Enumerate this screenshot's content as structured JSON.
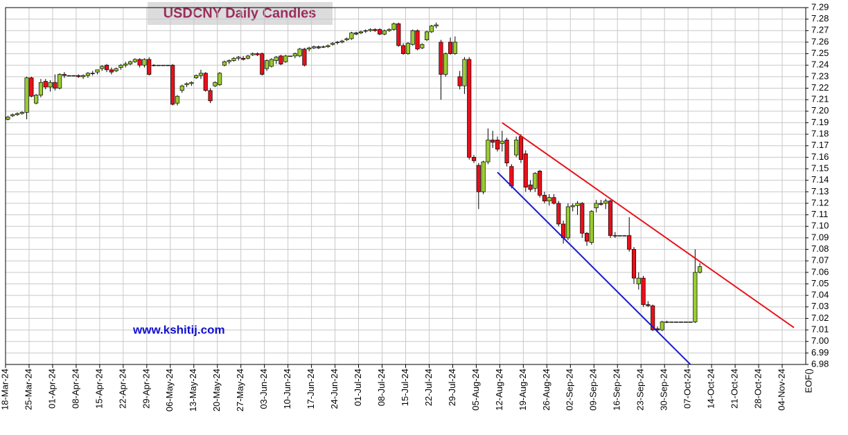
{
  "chart_data": {
    "type": "candlestick",
    "title": "USDCNY Daily Candles",
    "watermark": "www.kshitij.com",
    "up_color": "#99cc33",
    "down_color": "#e8101a",
    "grid": true,
    "xlim": [
      "2024-03-18",
      "2024-11-11"
    ],
    "x_end_label": "EOF()",
    "xticks": [
      {
        "value": "2024-03-18",
        "label": "18-Mar-24"
      },
      {
        "value": "2024-03-25",
        "label": "25-Mar-24"
      },
      {
        "value": "2024-04-01",
        "label": "01-Apr-24"
      },
      {
        "value": "2024-04-08",
        "label": "08-Apr-24"
      },
      {
        "value": "2024-04-15",
        "label": "15-Apr-24"
      },
      {
        "value": "2024-04-22",
        "label": "22-Apr-24"
      },
      {
        "value": "2024-04-29",
        "label": "29-Apr-24"
      },
      {
        "value": "2024-05-06",
        "label": "06-May-24"
      },
      {
        "value": "2024-05-13",
        "label": "13-May-24"
      },
      {
        "value": "2024-05-20",
        "label": "20-May-24"
      },
      {
        "value": "2024-05-27",
        "label": "27-May-24"
      },
      {
        "value": "2024-06-03",
        "label": "03-Jun-24"
      },
      {
        "value": "2024-06-10",
        "label": "10-Jun-24"
      },
      {
        "value": "2024-06-17",
        "label": "17-Jun-24"
      },
      {
        "value": "2024-06-24",
        "label": "24-Jun-24"
      },
      {
        "value": "2024-07-01",
        "label": "01-Jul-24"
      },
      {
        "value": "2024-07-08",
        "label": "08-Jul-24"
      },
      {
        "value": "2024-07-15",
        "label": "15-Jul-24"
      },
      {
        "value": "2024-07-22",
        "label": "22-Jul-24"
      },
      {
        "value": "2024-07-29",
        "label": "29-Jul-24"
      },
      {
        "value": "2024-08-05",
        "label": "05-Aug-24"
      },
      {
        "value": "2024-08-12",
        "label": "12-Aug-24"
      },
      {
        "value": "2024-08-19",
        "label": "19-Aug-24"
      },
      {
        "value": "2024-08-26",
        "label": "26-Aug-24"
      },
      {
        "value": "2024-09-02",
        "label": "02-Sep-24"
      },
      {
        "value": "2024-09-09",
        "label": "09-Sep-24"
      },
      {
        "value": "2024-09-16",
        "label": "16-Sep-24"
      },
      {
        "value": "2024-09-23",
        "label": "23-Sep-24"
      },
      {
        "value": "2024-09-30",
        "label": "30-Sep-24"
      },
      {
        "value": "2024-10-07",
        "label": "07-Oct-24"
      },
      {
        "value": "2024-10-14",
        "label": "14-Oct-24"
      },
      {
        "value": "2024-10-21",
        "label": "21-Oct-24"
      },
      {
        "value": "2024-10-28",
        "label": "28-Oct-24"
      },
      {
        "value": "2024-11-04",
        "label": "04-Nov-24"
      }
    ],
    "ylim": [
      6.98,
      7.29
    ],
    "yticks": [
      6.98,
      6.99,
      {
        "value": 7,
        "label": "7.00"
      },
      7.01,
      7.02,
      7.03,
      7.04,
      7.05,
      7.06,
      7.07,
      7.08,
      7.09,
      {
        "value": 7.1,
        "label": "7.10"
      },
      7.11,
      7.12,
      7.13,
      7.14,
      7.15,
      7.16,
      7.17,
      7.18,
      7.19,
      {
        "value": 7.2,
        "label": "7.20"
      },
      7.21,
      7.22,
      7.23,
      7.24,
      7.25,
      7.26,
      7.27,
      7.28,
      7.29
    ],
    "x": [
      "2024-03-18",
      "2024-03-19",
      "2024-03-20",
      "2024-03-21",
      "2024-03-22",
      "2024-03-25",
      "2024-03-26",
      "2024-03-27",
      "2024-03-28",
      "2024-03-29",
      "2024-04-01",
      "2024-04-02",
      "2024-04-03",
      "2024-04-04",
      "2024-04-05",
      "2024-04-08",
      "2024-04-09",
      "2024-04-10",
      "2024-04-11",
      "2024-04-12",
      "2024-04-15",
      "2024-04-16",
      "2024-04-17",
      "2024-04-18",
      "2024-04-19",
      "2024-04-22",
      "2024-04-23",
      "2024-04-24",
      "2024-04-25",
      "2024-04-26",
      "2024-04-29",
      "2024-04-30",
      "2024-05-01",
      "2024-05-02",
      "2024-05-03",
      "2024-05-06",
      "2024-05-07",
      "2024-05-08",
      "2024-05-09",
      "2024-05-10",
      "2024-05-13",
      "2024-05-14",
      "2024-05-15",
      "2024-05-16",
      "2024-05-17",
      "2024-05-20",
      "2024-05-21",
      "2024-05-22",
      "2024-05-23",
      "2024-05-24",
      "2024-05-27",
      "2024-05-28",
      "2024-05-29",
      "2024-05-30",
      "2024-05-31",
      "2024-06-03",
      "2024-06-04",
      "2024-06-05",
      "2024-06-06",
      "2024-06-07",
      "2024-06-10",
      "2024-06-11",
      "2024-06-12",
      "2024-06-13",
      "2024-06-14",
      "2024-06-17",
      "2024-06-18",
      "2024-06-19",
      "2024-06-20",
      "2024-06-21",
      "2024-06-24",
      "2024-06-25",
      "2024-06-26",
      "2024-06-27",
      "2024-06-28",
      "2024-07-01",
      "2024-07-02",
      "2024-07-03",
      "2024-07-04",
      "2024-07-05",
      "2024-07-08",
      "2024-07-09",
      "2024-07-10",
      "2024-07-11",
      "2024-07-12",
      "2024-07-15",
      "2024-07-16",
      "2024-07-17",
      "2024-07-18",
      "2024-07-19",
      "2024-07-22",
      "2024-07-23",
      "2024-07-24",
      "2024-07-25",
      "2024-07-26",
      "2024-07-29",
      "2024-07-30",
      "2024-07-31",
      "2024-08-01",
      "2024-08-02",
      "2024-08-05",
      "2024-08-06",
      "2024-08-07",
      "2024-08-08",
      "2024-08-09",
      "2024-08-12",
      "2024-08-13",
      "2024-08-14",
      "2024-08-15",
      "2024-08-16",
      "2024-08-19",
      "2024-08-20",
      "2024-08-21",
      "2024-08-22",
      "2024-08-23",
      "2024-08-26",
      "2024-08-27",
      "2024-08-28",
      "2024-08-29",
      "2024-08-30",
      "2024-09-02",
      "2024-09-03",
      "2024-09-04",
      "2024-09-05",
      "2024-09-06",
      "2024-09-09",
      "2024-09-10",
      "2024-09-11",
      "2024-09-12",
      "2024-09-13",
      "2024-09-16",
      "2024-09-17",
      "2024-09-18",
      "2024-09-19",
      "2024-09-20",
      "2024-09-23",
      "2024-09-24",
      "2024-09-25",
      "2024-09-26",
      "2024-09-27",
      "2024-09-30",
      "2024-10-01",
      "2024-10-02",
      "2024-10-03",
      "2024-10-04",
      "2024-10-07",
      "2024-10-08",
      "2024-10-09"
    ],
    "ohlc": [
      [
        7.193,
        7.196,
        7.192,
        7.195
      ],
      [
        7.196,
        7.198,
        7.195,
        7.197
      ],
      [
        7.197,
        7.199,
        7.196,
        7.198
      ],
      [
        7.198,
        7.2,
        7.197,
        7.199
      ],
      [
        7.199,
        7.23,
        7.193,
        7.229
      ],
      [
        7.229,
        7.23,
        7.212,
        7.213
      ],
      [
        7.207,
        7.215,
        7.206,
        7.214
      ],
      [
        7.214,
        7.228,
        7.212,
        7.225
      ],
      [
        7.226,
        7.228,
        7.219,
        7.221
      ],
      [
        7.221,
        7.227,
        7.217,
        7.225
      ],
      [
        7.225,
        7.232,
        7.218,
        7.22
      ],
      [
        7.22,
        7.233,
        7.219,
        7.232
      ],
      [
        7.232,
        7.234,
        7.229,
        7.231
      ],
      [
        7.231,
        7.231,
        7.231,
        7.231
      ],
      [
        7.231,
        7.231,
        7.231,
        7.231
      ],
      [
        7.231,
        7.232,
        7.229,
        7.23
      ],
      [
        7.23,
        7.232,
        7.228,
        7.231
      ],
      [
        7.231,
        7.234,
        7.229,
        7.233
      ],
      [
        7.233,
        7.235,
        7.231,
        7.233
      ],
      [
        7.234,
        7.236,
        7.232,
        7.236
      ],
      [
        7.237,
        7.24,
        7.235,
        7.239
      ],
      [
        7.24,
        7.241,
        7.234,
        7.236
      ],
      [
        7.236,
        7.238,
        7.232,
        7.234
      ],
      [
        7.235,
        7.238,
        7.234,
        7.237
      ],
      [
        7.238,
        7.241,
        7.236,
        7.24
      ],
      [
        7.24,
        7.243,
        7.238,
        7.241
      ],
      [
        7.241,
        7.244,
        7.24,
        7.243
      ],
      [
        7.243,
        7.246,
        7.242,
        7.245
      ],
      [
        7.245,
        7.246,
        7.238,
        7.24
      ],
      [
        7.24,
        7.246,
        7.238,
        7.245
      ],
      [
        7.245,
        7.247,
        7.231,
        7.232
      ],
      [
        7.24,
        7.241,
        7.239,
        7.24
      ],
      [
        7.24,
        7.24,
        7.24,
        7.24
      ],
      [
        7.24,
        7.24,
        7.24,
        7.24
      ],
      [
        7.24,
        7.24,
        7.24,
        7.24
      ],
      [
        7.24,
        7.241,
        7.205,
        7.206
      ],
      [
        7.207,
        7.214,
        7.205,
        7.213
      ],
      [
        7.218,
        7.223,
        7.216,
        7.222
      ],
      [
        7.223,
        7.225,
        7.221,
        7.224
      ],
      [
        7.224,
        7.226,
        7.222,
        7.225
      ],
      [
        7.229,
        7.232,
        7.228,
        7.231
      ],
      [
        7.231,
        7.236,
        7.228,
        7.233
      ],
      [
        7.233,
        7.234,
        7.217,
        7.218
      ],
      [
        7.218,
        7.22,
        7.207,
        7.209
      ],
      [
        7.222,
        7.226,
        7.221,
        7.225
      ],
      [
        7.223,
        7.234,
        7.222,
        7.233
      ],
      [
        7.24,
        7.244,
        7.239,
        7.243
      ],
      [
        7.243,
        7.245,
        7.241,
        7.244
      ],
      [
        7.244,
        7.247,
        7.243,
        7.246
      ],
      [
        7.246,
        7.248,
        7.244,
        7.247
      ],
      [
        7.246,
        7.248,
        7.244,
        7.245
      ],
      [
        7.246,
        7.249,
        7.245,
        7.248
      ],
      [
        7.249,
        7.251,
        7.248,
        7.25
      ],
      [
        7.25,
        7.251,
        7.248,
        7.249
      ],
      [
        7.25,
        7.251,
        7.231,
        7.232
      ],
      [
        7.237,
        7.245,
        7.235,
        7.244
      ],
      [
        7.239,
        7.246,
        7.238,
        7.245
      ],
      [
        7.244,
        7.248,
        7.241,
        7.247
      ],
      [
        7.248,
        7.249,
        7.24,
        7.241
      ],
      [
        7.243,
        7.249,
        7.242,
        7.248
      ],
      [
        7.248,
        7.248,
        7.248,
        7.248
      ],
      [
        7.248,
        7.251,
        7.246,
        7.25
      ],
      [
        7.248,
        7.255,
        7.247,
        7.254
      ],
      [
        7.254,
        7.255,
        7.239,
        7.24
      ],
      [
        7.254,
        7.256,
        7.252,
        7.255
      ],
      [
        7.255,
        7.257,
        7.254,
        7.256
      ],
      [
        7.256,
        7.257,
        7.254,
        7.255
      ],
      [
        7.256,
        7.257,
        7.255,
        7.256
      ],
      [
        7.256,
        7.258,
        7.255,
        7.257
      ],
      [
        7.258,
        7.26,
        7.257,
        7.259
      ],
      [
        7.26,
        7.261,
        7.258,
        7.26
      ],
      [
        7.26,
        7.262,
        7.259,
        7.261
      ],
      [
        7.262,
        7.264,
        7.261,
        7.263
      ],
      [
        7.263,
        7.269,
        7.262,
        7.268
      ],
      [
        7.268,
        7.269,
        7.266,
        7.267
      ],
      [
        7.268,
        7.27,
        7.267,
        7.269
      ],
      [
        7.27,
        7.271,
        7.268,
        7.27
      ],
      [
        7.27,
        7.272,
        7.269,
        7.271
      ],
      [
        7.271,
        7.272,
        7.269,
        7.27
      ],
      [
        7.271,
        7.272,
        7.266,
        7.267
      ],
      [
        7.267,
        7.271,
        7.266,
        7.27
      ],
      [
        7.27,
        7.272,
        7.269,
        7.271
      ],
      [
        7.271,
        7.277,
        7.27,
        7.276
      ],
      [
        7.276,
        7.277,
        7.256,
        7.257
      ],
      [
        7.257,
        7.259,
        7.249,
        7.25
      ],
      [
        7.25,
        7.26,
        7.249,
        7.259
      ],
      [
        7.258,
        7.271,
        7.257,
        7.27
      ],
      [
        7.27,
        7.271,
        7.253,
        7.254
      ],
      [
        7.255,
        7.259,
        7.254,
        7.258
      ],
      [
        7.262,
        7.27,
        7.261,
        7.269
      ],
      [
        7.269,
        7.275,
        7.268,
        7.274
      ],
      [
        7.274,
        7.277,
        7.272,
        7.275
      ],
      [
        7.26,
        7.262,
        7.21,
        7.232
      ],
      [
        7.232,
        7.251,
        7.23,
        7.25
      ],
      [
        7.26,
        7.264,
        7.249,
        7.25
      ],
      [
        7.25,
        7.265,
        7.249,
        7.26
      ],
      [
        7.23,
        7.235,
        7.219,
        7.222
      ],
      [
        7.222,
        7.247,
        7.215,
        7.245
      ],
      [
        7.245,
        7.247,
        7.158,
        7.16
      ],
      [
        7.16,
        7.162,
        7.155,
        7.157
      ],
      [
        7.153,
        7.155,
        7.115,
        7.13
      ],
      [
        7.13,
        7.157,
        7.128,
        7.156
      ],
      [
        7.156,
        7.185,
        7.154,
        7.175
      ],
      [
        7.175,
        7.183,
        7.168,
        7.173
      ],
      [
        7.175,
        7.178,
        7.165,
        7.167
      ],
      [
        7.172,
        7.183,
        7.165,
        7.174
      ],
      [
        7.175,
        7.177,
        7.152,
        7.155
      ],
      [
        7.152,
        7.154,
        7.133,
        7.135
      ],
      [
        7.162,
        7.178,
        7.16,
        7.175
      ],
      [
        7.178,
        7.18,
        7.155,
        7.158
      ],
      [
        7.163,
        7.166,
        7.13,
        7.134
      ],
      [
        7.136,
        7.14,
        7.13,
        7.132
      ],
      [
        7.133,
        7.147,
        7.13,
        7.146
      ],
      [
        7.148,
        7.149,
        7.125,
        7.127
      ],
      [
        7.127,
        7.13,
        7.12,
        7.122
      ],
      [
        7.122,
        7.128,
        7.118,
        7.125
      ],
      [
        7.125,
        7.128,
        7.119,
        7.12
      ],
      [
        7.12,
        7.122,
        7.1,
        7.102
      ],
      [
        7.102,
        7.105,
        7.085,
        7.09
      ],
      [
        7.09,
        7.12,
        7.088,
        7.117
      ],
      [
        7.117,
        7.12,
        7.113,
        7.118
      ],
      [
        7.118,
        7.122,
        7.11,
        7.12
      ],
      [
        7.12,
        7.121,
        7.09,
        7.094
      ],
      [
        7.094,
        7.095,
        7.083,
        7.087
      ],
      [
        7.086,
        7.114,
        7.084,
        7.113
      ],
      [
        7.116,
        7.123,
        7.112,
        7.12
      ],
      [
        7.12,
        7.123,
        7.118,
        7.119
      ],
      [
        7.12,
        7.124,
        7.115,
        7.122
      ],
      [
        7.122,
        7.123,
        7.09,
        7.092
      ],
      [
        7.092,
        7.095,
        7.09,
        7.092
      ],
      [
        7.092,
        7.092,
        7.092,
        7.092
      ],
      [
        7.092,
        7.092,
        7.092,
        7.092
      ],
      [
        7.092,
        7.108,
        7.078,
        7.08
      ],
      [
        7.08,
        7.082,
        7.05,
        7.055
      ],
      [
        7.05,
        7.06,
        7.045,
        7.055
      ],
      [
        7.055,
        7.057,
        7.03,
        7.032
      ],
      [
        7.032,
        7.035,
        7.03,
        7.031
      ],
      [
        7.031,
        7.032,
        7.009,
        7.01
      ],
      [
        7.011,
        7.013,
        7.009,
        7.01
      ],
      [
        7.01,
        7.018,
        7.009,
        7.017
      ],
      [
        7.017,
        7.018,
        7.016,
        7.017
      ],
      [
        7.017,
        7.017,
        7.017,
        7.017
      ],
      [
        7.017,
        7.017,
        7.017,
        7.017
      ],
      [
        7.017,
        7.017,
        7.017,
        7.017
      ],
      [
        7.017,
        7.017,
        7.017,
        7.017
      ],
      [
        7.017,
        7.017,
        7.017,
        7.017
      ],
      [
        7.017,
        7.08,
        7.016,
        7.06
      ],
      [
        7.06,
        7.068,
        7.059,
        7.065
      ]
    ],
    "trendlines": [
      {
        "color": "#e8101a",
        "x": [
          "2024-08-12",
          "2024-11-06"
        ],
        "y": [
          7.19,
          7.012
        ]
      },
      {
        "color": "#1a1ac8",
        "x": [
          "2024-08-09",
          "2024-10-07"
        ],
        "y": [
          7.147,
          6.98
        ]
      }
    ]
  }
}
